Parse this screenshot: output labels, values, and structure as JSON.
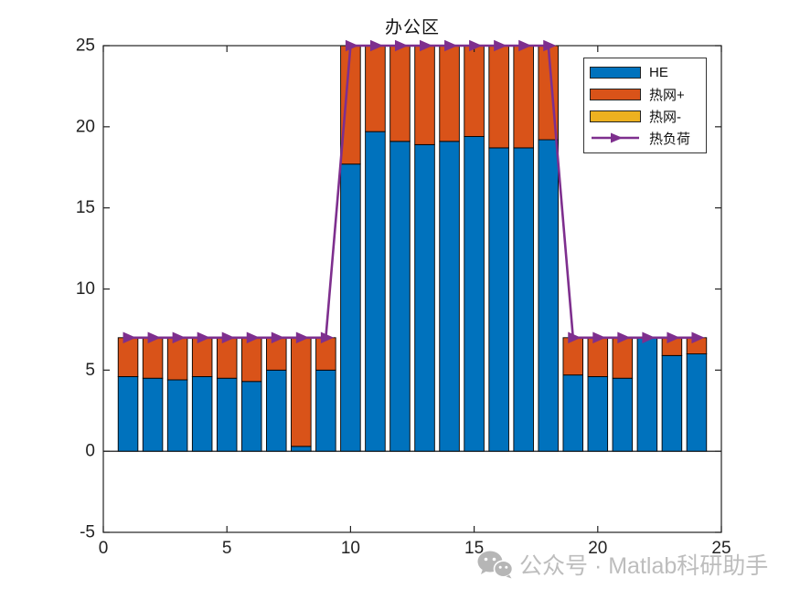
{
  "title": "办公区",
  "watermark": {
    "icon": "wechat-icon",
    "text": "公众号 · Matlab科研助手"
  },
  "chart_data": {
    "type": "bar",
    "subtype": "stacked-bars-with-line-overlay",
    "title": "办公区",
    "xlabel": "",
    "ylabel": "",
    "x_hours": [
      1,
      2,
      3,
      4,
      5,
      6,
      7,
      8,
      9,
      10,
      11,
      12,
      13,
      14,
      15,
      16,
      17,
      18,
      19,
      20,
      21,
      22,
      23,
      24
    ],
    "series": [
      {
        "name": "HE",
        "type": "bar",
        "color": "#0072BD",
        "values": [
          4.6,
          4.5,
          4.4,
          4.6,
          4.5,
          4.3,
          5.0,
          0.3,
          5.0,
          17.7,
          19.7,
          19.1,
          18.9,
          19.1,
          19.4,
          18.7,
          18.7,
          19.2,
          4.7,
          4.6,
          4.5,
          7.0,
          5.9,
          6.0
        ]
      },
      {
        "name": "热网+",
        "type": "bar",
        "color": "#D95319",
        "values": [
          2.4,
          2.5,
          2.6,
          2.4,
          2.5,
          2.7,
          2.0,
          6.7,
          2.0,
          7.3,
          5.3,
          5.9,
          6.1,
          5.9,
          5.6,
          6.3,
          6.3,
          5.8,
          2.3,
          2.4,
          2.5,
          0,
          1.1,
          1.0
        ]
      },
      {
        "name": "热网-",
        "type": "bar",
        "color": "#EDB120",
        "values": [
          0,
          0,
          0,
          0,
          0,
          0,
          0,
          0,
          0,
          0,
          0,
          0,
          0,
          0,
          0,
          0,
          0,
          0,
          0,
          0,
          0,
          0,
          0,
          0
        ]
      },
      {
        "name": "热负荷",
        "type": "line",
        "color": "#7E2F8E",
        "marker": "right-triangle",
        "values": [
          7,
          7,
          7,
          7,
          7,
          7,
          7,
          7,
          7,
          25,
          25,
          25,
          25,
          25,
          25,
          25,
          25,
          25,
          7,
          7,
          7,
          7,
          7,
          7
        ]
      }
    ],
    "xlim": [
      0,
      25
    ],
    "ylim": [
      -5,
      25
    ],
    "xticks": [
      0,
      5,
      10,
      15,
      20,
      25
    ],
    "yticks": [
      -5,
      0,
      5,
      10,
      15,
      20,
      25
    ],
    "grid": false,
    "legend": {
      "position": "northeast",
      "entries": [
        "HE",
        "热网+",
        "热网-",
        "热负荷"
      ]
    },
    "bar_edge_color": "#000000",
    "axis_color": "#222222",
    "baseline_y": 0
  }
}
